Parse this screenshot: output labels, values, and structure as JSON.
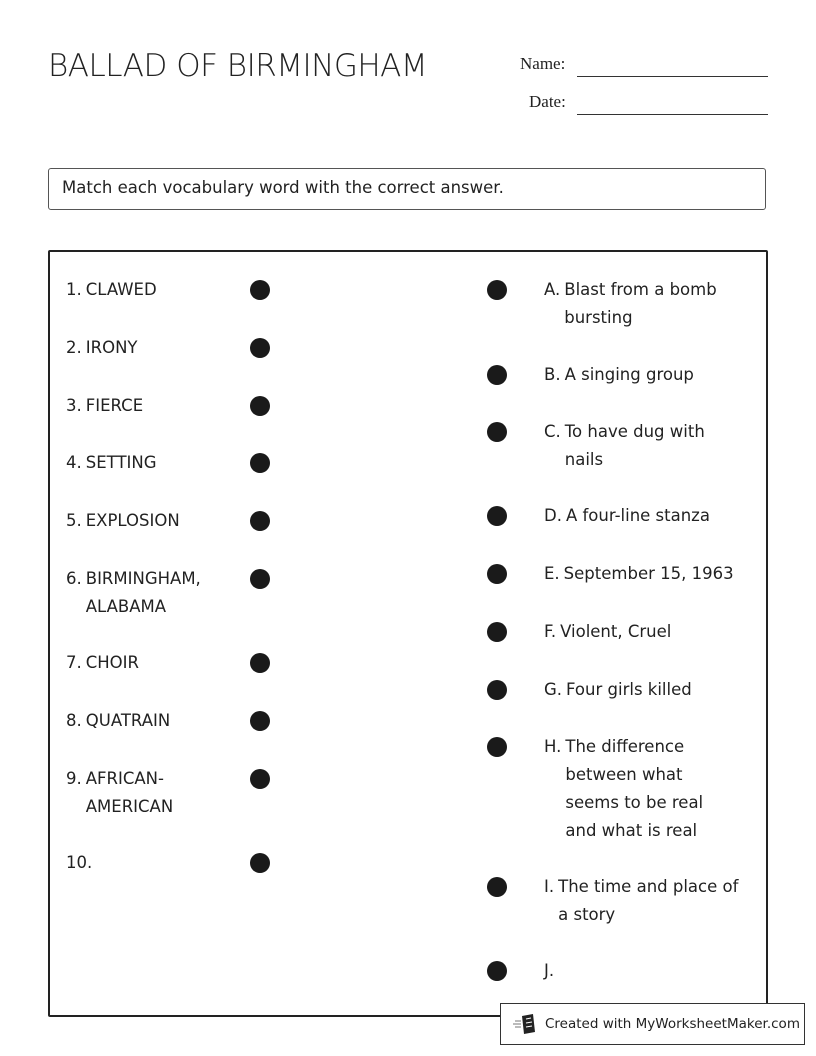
{
  "header": {
    "title": "BALLAD OF BIRMINGHAM",
    "name_label": "Name:",
    "date_label": "Date:"
  },
  "instructions": "Match each vocabulary word with the correct answer.",
  "left_items": [
    {
      "num": "1.",
      "text": "CLAWED"
    },
    {
      "num": "2.",
      "text": "IRONY"
    },
    {
      "num": "3.",
      "text": "FIERCE"
    },
    {
      "num": "4.",
      "text": "SETTING"
    },
    {
      "num": "5.",
      "text": "EXPLOSION"
    },
    {
      "num": "6.",
      "text": "BIRMINGHAM, ALABAMA"
    },
    {
      "num": "7.",
      "text": "CHOIR"
    },
    {
      "num": "8.",
      "text": "QUATRAIN"
    },
    {
      "num": "9.",
      "text": "AFRICAN-AMERICAN"
    },
    {
      "num": "10.",
      "text": ""
    }
  ],
  "right_items": [
    {
      "num": "A.",
      "text": "Blast from a bomb bursting"
    },
    {
      "num": "B.",
      "text": "A singing group"
    },
    {
      "num": "C.",
      "text": "To have dug with nails"
    },
    {
      "num": "D.",
      "text": "A four-line stanza"
    },
    {
      "num": "E.",
      "text": "September 15, 1963"
    },
    {
      "num": "F.",
      "text": "Violent, Cruel"
    },
    {
      "num": "G.",
      "text": "Four girls killed"
    },
    {
      "num": "H.",
      "text": "The difference between what seems to be real and what is real"
    },
    {
      "num": "I.",
      "text": "The time and place of a story"
    },
    {
      "num": "J.",
      "text": ""
    }
  ],
  "footer": {
    "credit": "Created with MyWorksheetMaker.com",
    "icon": "worksheet-logo-icon"
  }
}
